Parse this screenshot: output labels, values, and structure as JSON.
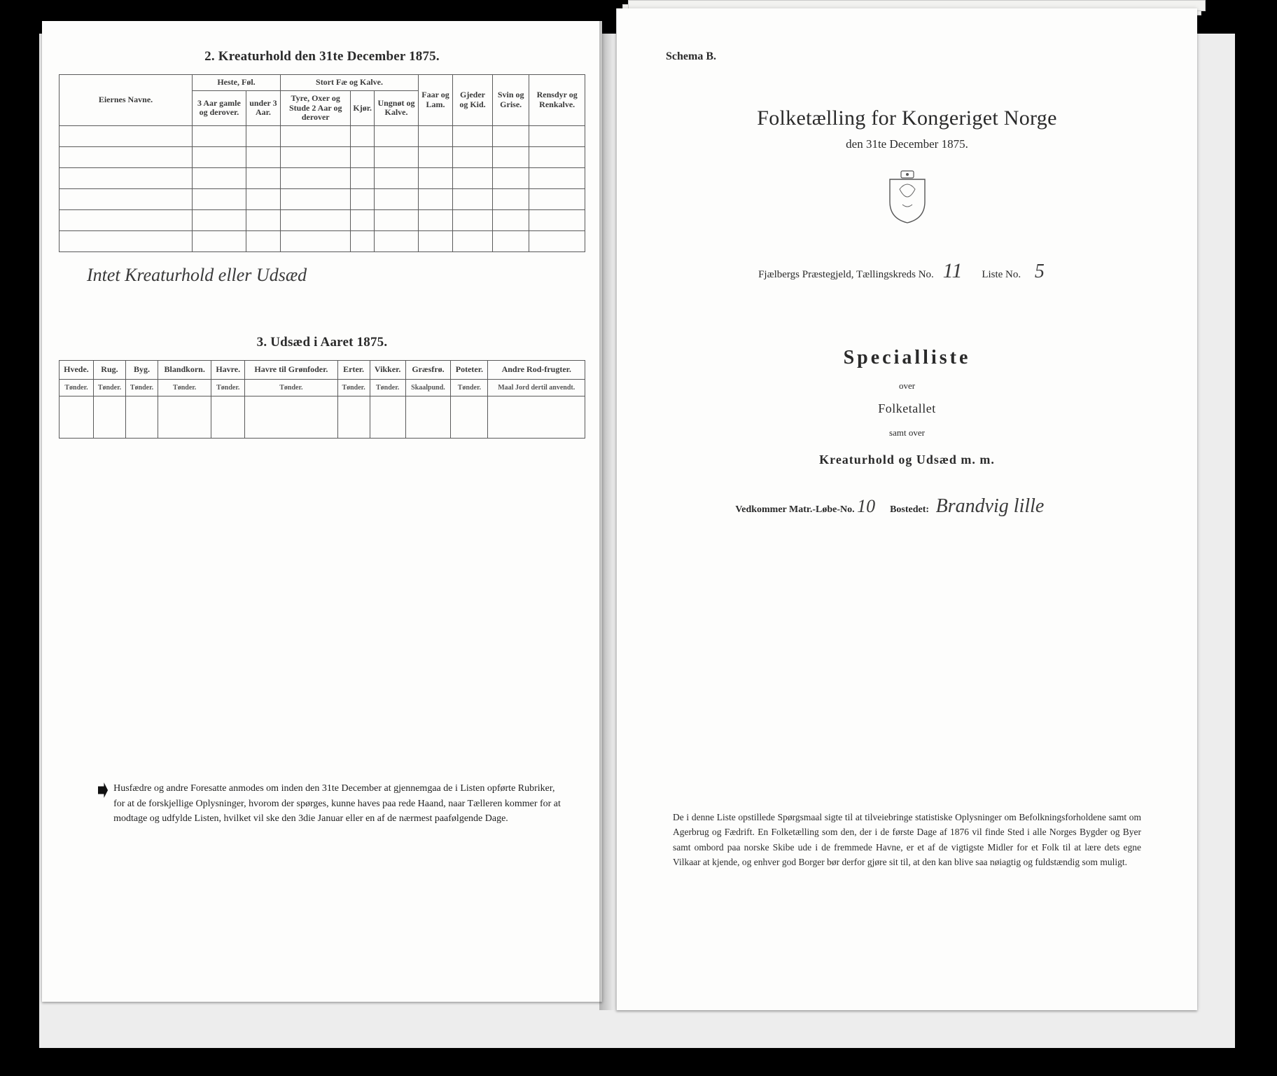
{
  "colors": {
    "frame_bg": "#000000",
    "scan_bg": "#ededed",
    "paper": "#fdfdfc",
    "ink": "#2a2a2a",
    "rule": "#5a5a5a"
  },
  "left": {
    "sec2_title": "2.  Kreaturhold den 31te December 1875.",
    "table2": {
      "col_eier": "Eiernes Navne.",
      "grp_heste": "Heste, Føl.",
      "heste_a": "3 Aar gamle og derover.",
      "heste_b": "under 3 Aar.",
      "grp_stort": "Stort Fæ og Kalve.",
      "stort_a": "Tyre, Oxer og Stude 2 Aar og derover",
      "stort_b": "Kjør.",
      "stort_c": "Ungnøt og Kalve.",
      "faar": "Faar og Lam.",
      "gjeder": "Gjeder og Kid.",
      "svin": "Svin og Grise.",
      "ren": "Rensdyr og Renkalve."
    },
    "handwritten_note": "Intet Kreaturhold eller Udsæd",
    "sec3_title": "3.  Udsæd i Aaret 1875.",
    "table3": {
      "cols": [
        {
          "h": "Hvede.",
          "s": "Tønder."
        },
        {
          "h": "Rug.",
          "s": "Tønder."
        },
        {
          "h": "Byg.",
          "s": "Tønder."
        },
        {
          "h": "Blandkorn.",
          "s": "Tønder."
        },
        {
          "h": "Havre.",
          "s": "Tønder."
        },
        {
          "h": "Havre til Grønfoder.",
          "s": "Tønder."
        },
        {
          "h": "Erter.",
          "s": "Tønder."
        },
        {
          "h": "Vikker.",
          "s": "Tønder."
        },
        {
          "h": "Græsfrø.",
          "s": "Skaalpund."
        },
        {
          "h": "Poteter.",
          "s": "Tønder."
        },
        {
          "h": "Andre Rod-frugter.",
          "s": "Maal Jord dertil anvendt."
        }
      ]
    },
    "footnote": "Husfædre og andre Foresatte anmodes om inden den 31te December at gjennemgaa de i Listen opførte Rubriker, for at de forskjellige Oplysninger, hvorom der spørges, kunne haves paa rede Haand, naar Tælleren kommer for at modtage og udfylde Listen, hvilket vil ske den 3die Januar eller en af de nærmest paafølgende Dage."
  },
  "right": {
    "schema": "Schema B.",
    "title": "Folketælling for Kongeriget Norge",
    "subtitle": "den 31te December 1875.",
    "district_line_pre": "Fjælbergs Præstegjeld, Tællingskreds No.",
    "kreds_no": "11",
    "liste_label": "Liste No.",
    "liste_no": "5",
    "specialliste": "Specialliste",
    "over": "over",
    "folketallet": "Folketallet",
    "samt": "samt over",
    "kreatur": "Kreaturhold og Udsæd m. m.",
    "vedkommer": "Vedkommer Matr.-Løbe-No.",
    "matr_no": "10",
    "bostedet_label": "Bostedet:",
    "bostedet": "Brandvig lille",
    "footnote": "De i denne Liste opstillede Spørgsmaal sigte til at tilveiebringe statistiske Oplysninger om Befolkningsforholdene samt om Agerbrug og Fædrift.  En Folketælling som den, der i de første Dage af 1876 vil finde Sted i alle Norges Bygder og Byer samt ombord paa norske Skibe ude i de fremmede Havne, er et af de vigtigste Midler for et Folk til at lære dets egne Vilkaar at kjende, og enhver god Borger bør derfor gjøre sit til, at den kan blive saa nøiagtig og fuldstændig som muligt."
  }
}
